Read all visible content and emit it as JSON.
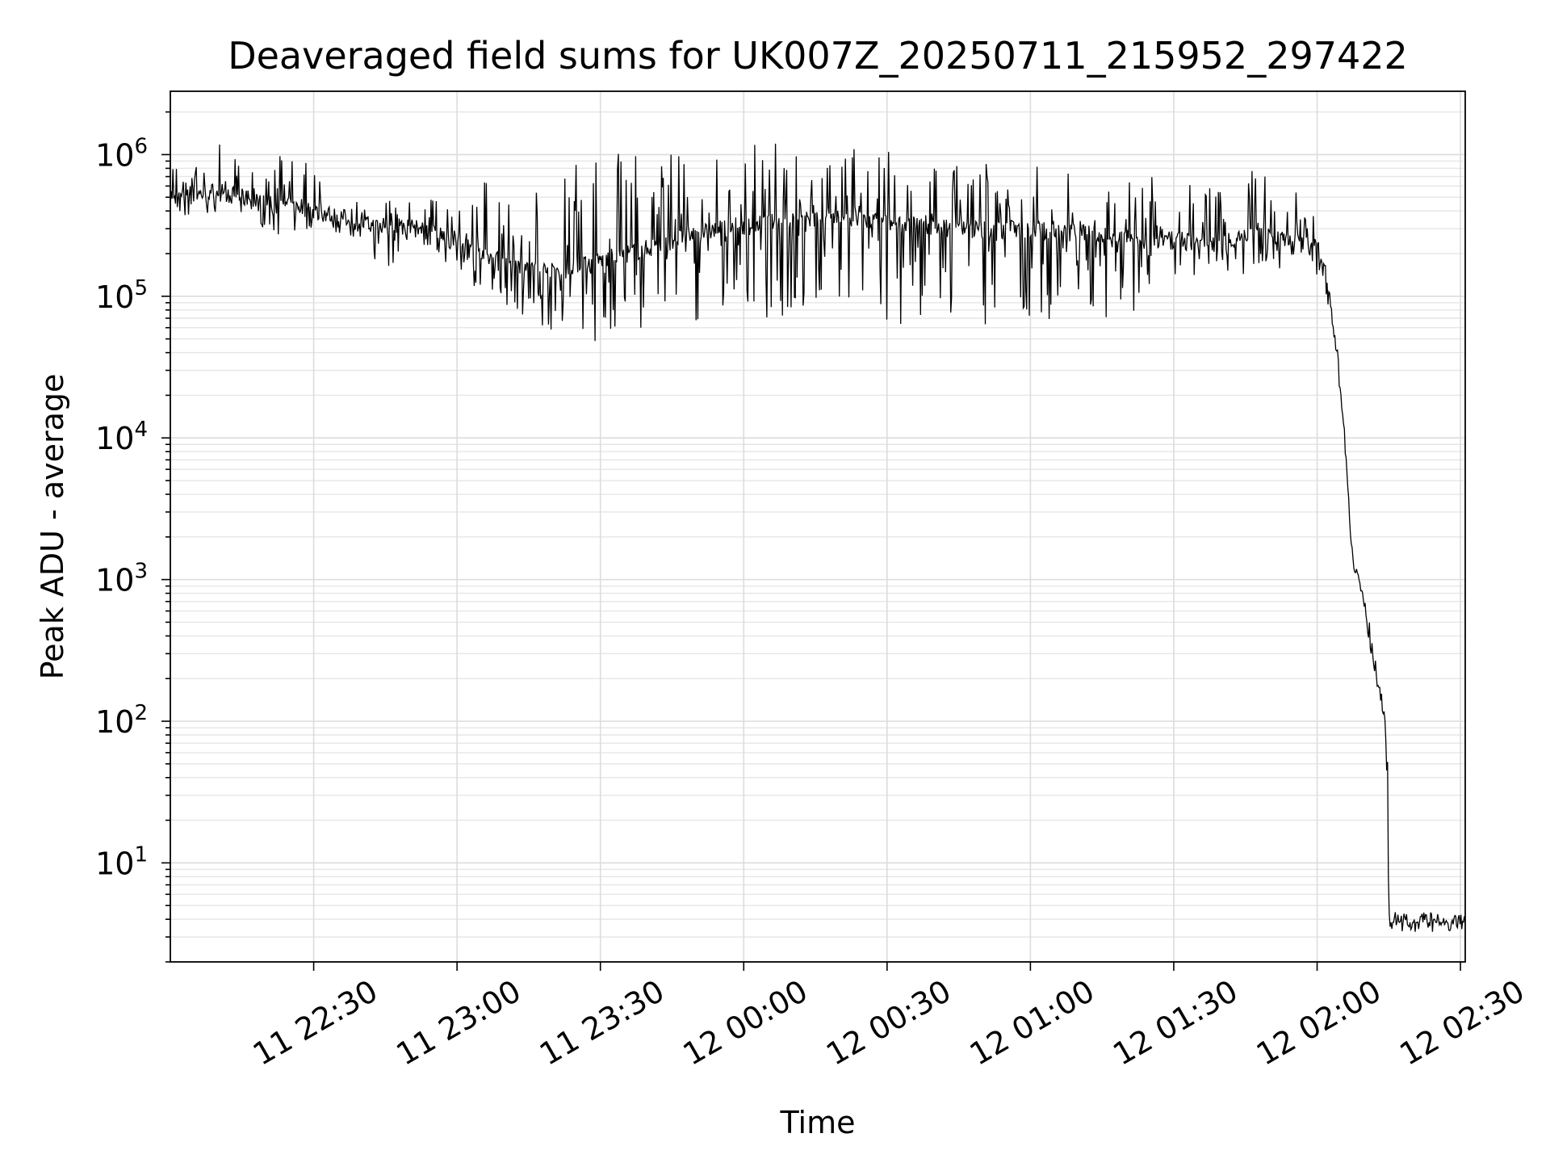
{
  "chart_data": {
    "type": "line",
    "title": "Deaveraged field sums for UK007Z_20250711_215952_297422",
    "xlabel": "Time",
    "ylabel": "Peak ADU - average",
    "yscale": "log",
    "xlim": [
      "2025-07-11T22:00:00",
      "2025-07-12T02:31:00"
    ],
    "ylim": [
      2,
      2800000
    ],
    "grid": true,
    "legend": "none",
    "line_color": "#000000",
    "x_ticks": [
      {
        "t": "2025-07-11T22:30:00",
        "label": "11 22:30"
      },
      {
        "t": "2025-07-11T23:00:00",
        "label": "11 23:00"
      },
      {
        "t": "2025-07-11T23:30:00",
        "label": "11 23:30"
      },
      {
        "t": "2025-07-12T00:00:00",
        "label": "12 00:00"
      },
      {
        "t": "2025-07-12T00:30:00",
        "label": "12 00:30"
      },
      {
        "t": "2025-07-12T01:00:00",
        "label": "12 01:00"
      },
      {
        "t": "2025-07-12T01:30:00",
        "label": "12 01:30"
      },
      {
        "t": "2025-07-12T02:00:00",
        "label": "12 02:00"
      },
      {
        "t": "2025-07-12T02:30:00",
        "label": "12 02:30"
      }
    ],
    "y_ticks": [
      {
        "v": 10,
        "base": "10",
        "exp": "1"
      },
      {
        "v": 100,
        "base": "10",
        "exp": "2"
      },
      {
        "v": 1000,
        "base": "10",
        "exp": "3"
      },
      {
        "v": 10000,
        "base": "10",
        "exp": "4"
      },
      {
        "v": 100000,
        "base": "10",
        "exp": "5"
      },
      {
        "v": 1000000,
        "base": "10",
        "exp": "6"
      }
    ],
    "series": [
      {
        "x": [
          "2025-07-11T22:00:00",
          "2025-07-11T22:05:00",
          "2025-07-11T22:10:00",
          "2025-07-11T22:15:00",
          "2025-07-11T22:20:00",
          "2025-07-11T22:25:00",
          "2025-07-11T22:30:00",
          "2025-07-11T22:35:00",
          "2025-07-11T22:40:00",
          "2025-07-11T22:45:00",
          "2025-07-11T22:50:00",
          "2025-07-11T22:55:00",
          "2025-07-11T23:00:00",
          "2025-07-11T23:05:00",
          "2025-07-11T23:10:00",
          "2025-07-11T23:15:00",
          "2025-07-11T23:20:00",
          "2025-07-11T23:25:00",
          "2025-07-11T23:30:00",
          "2025-07-11T23:35:00",
          "2025-07-11T23:40:00",
          "2025-07-11T23:45:00",
          "2025-07-11T23:50:00",
          "2025-07-11T23:55:00",
          "2025-07-12T00:00:00",
          "2025-07-12T00:05:00",
          "2025-07-12T00:10:00",
          "2025-07-12T00:15:00",
          "2025-07-12T00:20:00",
          "2025-07-12T00:25:00",
          "2025-07-12T00:30:00",
          "2025-07-12T00:35:00",
          "2025-07-12T00:40:00",
          "2025-07-12T00:45:00",
          "2025-07-12T00:50:00",
          "2025-07-12T00:55:00",
          "2025-07-12T01:00:00",
          "2025-07-12T01:05:00",
          "2025-07-12T01:10:00",
          "2025-07-12T01:15:00",
          "2025-07-12T01:20:00",
          "2025-07-12T01:25:00",
          "2025-07-12T01:30:00",
          "2025-07-12T01:35:00",
          "2025-07-12T01:40:00",
          "2025-07-12T01:45:00",
          "2025-07-12T01:50:00",
          "2025-07-12T01:55:00",
          "2025-07-12T02:00:00",
          "2025-07-12T02:02:00",
          "2025-07-12T02:03:00",
          "2025-07-12T02:04:00",
          "2025-07-12T02:05:00",
          "2025-07-12T02:06:00",
          "2025-07-12T02:07:00",
          "2025-07-12T02:08:00",
          "2025-07-12T02:09:00",
          "2025-07-12T02:10:00",
          "2025-07-12T02:11:00",
          "2025-07-12T02:12:00",
          "2025-07-12T02:13:00",
          "2025-07-12T02:14:00",
          "2025-07-12T02:14:30",
          "2025-07-12T02:15:00",
          "2025-07-12T02:15:10",
          "2025-07-12T02:20:00",
          "2025-07-12T02:25:00",
          "2025-07-12T02:31:00"
        ],
        "y": [
          480000,
          520000,
          560000,
          500000,
          450000,
          430000,
          400000,
          370000,
          330000,
          300000,
          310000,
          280000,
          250000,
          190000,
          180000,
          160000,
          150000,
          170000,
          180000,
          200000,
          220000,
          250000,
          280000,
          300000,
          320000,
          330000,
          340000,
          350000,
          350000,
          340000,
          330000,
          320000,
          310000,
          300000,
          300000,
          300000,
          300000,
          290000,
          280000,
          270000,
          260000,
          250000,
          250000,
          240000,
          240000,
          260000,
          280000,
          250000,
          220000,
          150000,
          80000,
          45000,
          20000,
          8000,
          2000,
          1200,
          900,
          600,
          400,
          250,
          180,
          120,
          60,
          6,
          3.8,
          3.8,
          3.8,
          3.8
        ],
        "y_min_envelope": [
          300000,
          350000,
          400000,
          350000,
          300000,
          250000,
          300000,
          280000,
          250000,
          140000,
          240000,
          200000,
          150000,
          100000,
          80000,
          70000,
          55000,
          50000,
          40000,
          45000,
          45000,
          50000,
          55000,
          60000,
          65000,
          70000,
          70000,
          75000,
          70000,
          65000,
          60000,
          60000,
          55000,
          60000,
          60000,
          65000,
          65000,
          60000,
          65000,
          70000,
          75000,
          80000,
          90000,
          100000,
          120000,
          140000,
          150000,
          150000,
          140000,
          100000,
          60000,
          40000,
          20000,
          8000,
          2000,
          1000,
          700,
          500,
          300,
          200,
          150,
          100,
          50,
          5,
          3.8,
          3.8,
          3.8,
          3.8
        ],
        "y_max_envelope": [
          900000,
          1200000,
          1300000,
          1100000,
          1100000,
          1000000,
          900000,
          1000000,
          400000,
          600000,
          650000,
          650000,
          600000,
          650000,
          700000,
          750000,
          850000,
          900000,
          1000000,
          1050000,
          1100000,
          1150000,
          1200000,
          1200000,
          1200000,
          1250000,
          1200000,
          1200000,
          1150000,
          1150000,
          1100000,
          1050000,
          1000000,
          1000000,
          950000,
          950000,
          950000,
          900000,
          850000,
          800000,
          750000,
          700000,
          650000,
          600000,
          600000,
          700000,
          1000000,
          600000,
          350000,
          200000,
          100000,
          50000,
          20000,
          8000,
          2000,
          1300,
          1000,
          700,
          500,
          300,
          200,
          150,
          60,
          55,
          4.5,
          4.5,
          4.5,
          4.5
        ]
      }
    ]
  }
}
